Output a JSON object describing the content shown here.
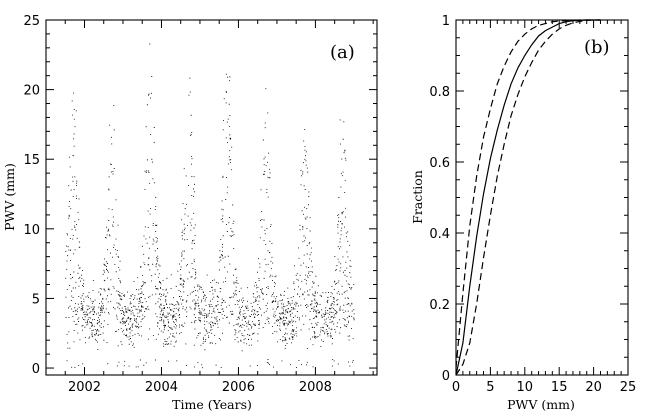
{
  "chart_data": [
    {
      "type": "scatter",
      "panel_label": "(a)",
      "xlabel": "Time (Years)",
      "ylabel": "PWV (mm)",
      "xlim": [
        2001,
        2009.6
      ],
      "ylim": [
        -0.5,
        25
      ],
      "xticks": [
        2002,
        2004,
        2006,
        2008
      ],
      "xtick_labels": [
        "2002",
        "2004",
        "2006",
        "2008"
      ],
      "yticks": [
        0,
        5,
        10,
        15,
        20,
        25
      ],
      "ytick_labels": [
        "0",
        "5",
        "10",
        "15",
        "20",
        "25"
      ],
      "data_span": [
        2001.5,
        2009.0
      ],
      "seasonal_peaks": [
        {
          "x": 2001.7,
          "y": 20.3
        },
        {
          "x": 2002.7,
          "y": 20.5
        },
        {
          "x": 2003.7,
          "y": 24.0
        },
        {
          "x": 2004.7,
          "y": 22.8
        },
        {
          "x": 2005.7,
          "y": 22.7
        },
        {
          "x": 2006.7,
          "y": 20.3
        },
        {
          "x": 2007.7,
          "y": 17.8
        },
        {
          "x": 2008.7,
          "y": 19.3
        }
      ],
      "typical_baseline_range": [
        0,
        7
      ],
      "grid": false,
      "legend": "none"
    },
    {
      "type": "line",
      "panel_label": "(b)",
      "xlabel": "PWV (mm)",
      "ylabel": "Fraction",
      "xlim": [
        0,
        25
      ],
      "ylim": [
        0,
        1
      ],
      "xticks": [
        0,
        5,
        10,
        15,
        20,
        25
      ],
      "xtick_labels": [
        "0",
        "5",
        "10",
        "15",
        "20",
        "25"
      ],
      "yticks": [
        0,
        0.2,
        0.4,
        0.6,
        0.8,
        1
      ],
      "ytick_labels": [
        "0",
        "0.2",
        "0.4",
        "0.6",
        "0.8",
        "1"
      ],
      "x": [
        0,
        1,
        2,
        3,
        4,
        5,
        6,
        7,
        8,
        9,
        10,
        11,
        12,
        13,
        14,
        15,
        16,
        17,
        18,
        19,
        20,
        21
      ],
      "series": [
        {
          "style": "dashed",
          "values": [
            0.02,
            0.23,
            0.42,
            0.56,
            0.67,
            0.75,
            0.82,
            0.87,
            0.91,
            0.94,
            0.96,
            0.975,
            0.985,
            0.99,
            0.995,
            0.997,
            0.998,
            0.999,
            1,
            1,
            1,
            1
          ]
        },
        {
          "style": "solid",
          "values": [
            0,
            0.09,
            0.25,
            0.39,
            0.51,
            0.61,
            0.69,
            0.76,
            0.82,
            0.865,
            0.9,
            0.93,
            0.955,
            0.97,
            0.98,
            0.99,
            0.995,
            0.998,
            0.999,
            1,
            1,
            1
          ]
        },
        {
          "style": "dashed",
          "values": [
            0,
            0.03,
            0.09,
            0.2,
            0.33,
            0.45,
            0.56,
            0.65,
            0.73,
            0.79,
            0.84,
            0.88,
            0.915,
            0.94,
            0.96,
            0.975,
            0.985,
            0.992,
            0.996,
            0.999,
            1,
            1
          ]
        }
      ],
      "grid": false,
      "legend": "none"
    }
  ]
}
